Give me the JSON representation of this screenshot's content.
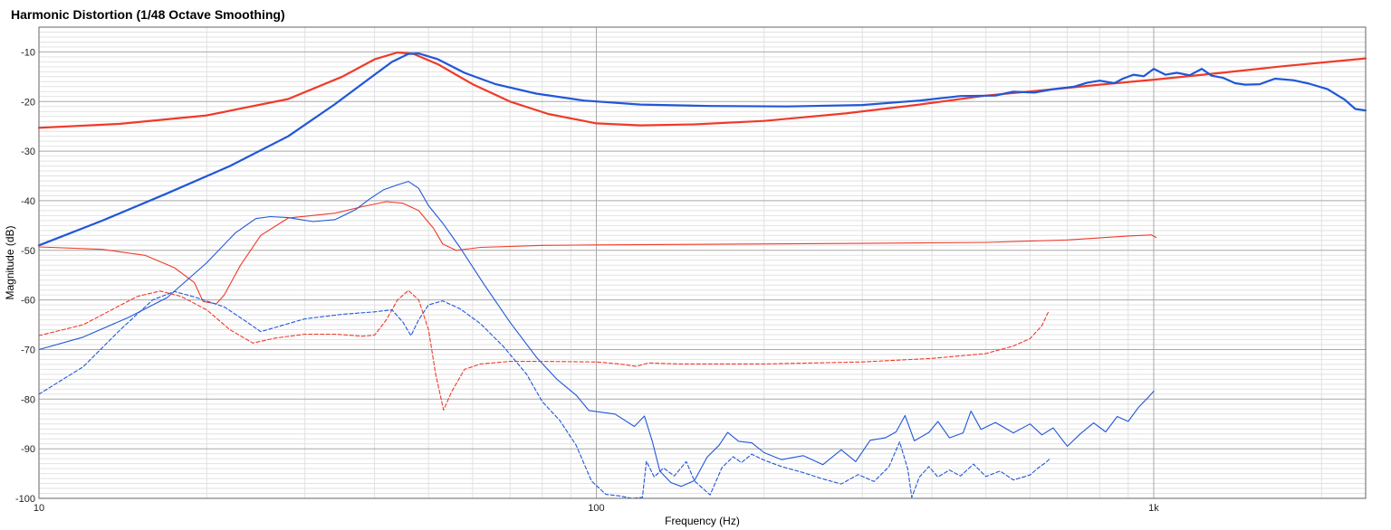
{
  "chart_data": {
    "type": "line",
    "title": "Harmonic Distortion (1/48 Octave Smoothing)",
    "xlabel": "Frequency (Hz)",
    "ylabel": "Magnitude (dB)",
    "x_scale": "log",
    "xlim": [
      10,
      2400
    ],
    "ylim": [
      -100,
      -5
    ],
    "x_ticks": [
      {
        "value": 10,
        "label": "10"
      },
      {
        "value": 100,
        "label": "100"
      },
      {
        "value": 1000,
        "label": "1k"
      }
    ],
    "y_ticks": [
      -10,
      -20,
      -30,
      -40,
      -50,
      -60,
      -70,
      -80,
      -90,
      -100
    ],
    "grid": true,
    "legend": "none",
    "colors": {
      "red": "#f03a2a",
      "blue": "#2057d8",
      "grid_major": "#a8a8a8",
      "grid_minor": "#e2e2e2"
    },
    "series": [
      {
        "color": "red",
        "style": "solid",
        "weight": "thick",
        "points": [
          [
            10,
            -25.3
          ],
          [
            14,
            -24.5
          ],
          [
            20,
            -22.8
          ],
          [
            28,
            -19.5
          ],
          [
            35,
            -15
          ],
          [
            40,
            -11.5
          ],
          [
            44,
            -10.1
          ],
          [
            47,
            -10.4
          ],
          [
            52,
            -12.5
          ],
          [
            60,
            -16.5
          ],
          [
            70,
            -20
          ],
          [
            82,
            -22.5
          ],
          [
            100,
            -24.4
          ],
          [
            120,
            -24.8
          ],
          [
            150,
            -24.6
          ],
          [
            200,
            -23.9
          ],
          [
            280,
            -22.4
          ],
          [
            380,
            -20.6
          ],
          [
            500,
            -18.8
          ],
          [
            650,
            -17.6
          ],
          [
            800,
            -16.6
          ],
          [
            1000,
            -15.6
          ],
          [
            1300,
            -14.3
          ],
          [
            1700,
            -12.9
          ],
          [
            2400,
            -11.3
          ]
        ]
      },
      {
        "color": "blue",
        "style": "solid",
        "weight": "thick",
        "points": [
          [
            10,
            -49
          ],
          [
            13,
            -44
          ],
          [
            17,
            -38.5
          ],
          [
            22,
            -33
          ],
          [
            28,
            -27
          ],
          [
            34,
            -20.5
          ],
          [
            39,
            -15.5
          ],
          [
            43,
            -12
          ],
          [
            46,
            -10.4
          ],
          [
            48,
            -10.3
          ],
          [
            52,
            -11.5
          ],
          [
            58,
            -14.2
          ],
          [
            66,
            -16.5
          ],
          [
            78,
            -18.4
          ],
          [
            95,
            -19.8
          ],
          [
            120,
            -20.6
          ],
          [
            160,
            -20.9
          ],
          [
            220,
            -21
          ],
          [
            300,
            -20.7
          ],
          [
            380,
            -19.8
          ],
          [
            450,
            -18.9
          ],
          [
            520,
            -18.8
          ],
          [
            560,
            -18
          ],
          [
            610,
            -18.2
          ],
          [
            660,
            -17.5
          ],
          [
            720,
            -17
          ],
          [
            760,
            -16.2
          ],
          [
            800,
            -15.8
          ],
          [
            850,
            -16.3
          ],
          [
            880,
            -15.4
          ],
          [
            920,
            -14.6
          ],
          [
            960,
            -14.9
          ],
          [
            1000,
            -13.4
          ],
          [
            1050,
            -14.6
          ],
          [
            1100,
            -14.2
          ],
          [
            1160,
            -14.7
          ],
          [
            1220,
            -13.4
          ],
          [
            1270,
            -14.8
          ],
          [
            1330,
            -15.2
          ],
          [
            1400,
            -16.3
          ],
          [
            1460,
            -16.6
          ],
          [
            1550,
            -16.5
          ],
          [
            1650,
            -15.4
          ],
          [
            1780,
            -15.7
          ],
          [
            1900,
            -16.4
          ],
          [
            2050,
            -17.5
          ],
          [
            2200,
            -19.6
          ],
          [
            2300,
            -21.5
          ],
          [
            2400,
            -21.8
          ]
        ]
      },
      {
        "color": "red",
        "style": "solid",
        "weight": "thin",
        "points": [
          [
            10,
            -49.3
          ],
          [
            13,
            -49.8
          ],
          [
            15.5,
            -51
          ],
          [
            17.5,
            -53.5
          ],
          [
            19,
            -56.5
          ],
          [
            19.7,
            -60.3
          ],
          [
            20.8,
            -60.8
          ],
          [
            21.5,
            -59
          ],
          [
            23,
            -53
          ],
          [
            25,
            -47
          ],
          [
            28,
            -43.5
          ],
          [
            34,
            -42.5
          ],
          [
            38,
            -41.2
          ],
          [
            42,
            -40.2
          ],
          [
            45,
            -40.5
          ],
          [
            48,
            -42
          ],
          [
            51,
            -45.5
          ],
          [
            53,
            -48.7
          ],
          [
            56,
            -50
          ],
          [
            62,
            -49.4
          ],
          [
            80,
            -49
          ],
          [
            100,
            -48.9
          ],
          [
            150,
            -48.8
          ],
          [
            300,
            -48.6
          ],
          [
            500,
            -48.4
          ],
          [
            700,
            -47.9
          ],
          [
            900,
            -47.1
          ],
          [
            990,
            -46.9
          ],
          [
            1010,
            -47.4
          ]
        ]
      },
      {
        "color": "blue",
        "style": "solid",
        "weight": "thin",
        "points": [
          [
            10,
            -70
          ],
          [
            12,
            -67.5
          ],
          [
            14.5,
            -63.5
          ],
          [
            17,
            -59.5
          ],
          [
            20,
            -52.5
          ],
          [
            22.5,
            -46.5
          ],
          [
            24.5,
            -43.6
          ],
          [
            26,
            -43.2
          ],
          [
            28,
            -43.4
          ],
          [
            31,
            -44.2
          ],
          [
            34,
            -43.8
          ],
          [
            37,
            -41.8
          ],
          [
            39,
            -39.8
          ],
          [
            41.5,
            -37.8
          ],
          [
            44,
            -36.8
          ],
          [
            46,
            -36.1
          ],
          [
            48,
            -37.5
          ],
          [
            50,
            -41
          ],
          [
            53,
            -44.5
          ],
          [
            57,
            -49.5
          ],
          [
            63,
            -57
          ],
          [
            70,
            -64.5
          ],
          [
            78,
            -71.5
          ],
          [
            85,
            -76
          ],
          [
            92,
            -79.2
          ],
          [
            97,
            -82.3
          ],
          [
            108,
            -83
          ],
          [
            117,
            -85.5
          ],
          [
            122,
            -83.4
          ],
          [
            126,
            -88.5
          ],
          [
            130,
            -94.5
          ],
          [
            136,
            -96.8
          ],
          [
            142,
            -97.6
          ],
          [
            150,
            -96.4
          ],
          [
            158,
            -91.7
          ],
          [
            166,
            -89.3
          ],
          [
            172,
            -86.7
          ],
          [
            180,
            -88.5
          ],
          [
            190,
            -88.8
          ],
          [
            200,
            -90.8
          ],
          [
            215,
            -92.2
          ],
          [
            235,
            -91.4
          ],
          [
            255,
            -93.2
          ],
          [
            275,
            -90.2
          ],
          [
            292,
            -92.6
          ],
          [
            310,
            -88.3
          ],
          [
            330,
            -87.8
          ],
          [
            345,
            -86.6
          ],
          [
            358,
            -83.3
          ],
          [
            372,
            -88.4
          ],
          [
            395,
            -86.7
          ],
          [
            410,
            -84.5
          ],
          [
            430,
            -87.8
          ],
          [
            455,
            -86.8
          ],
          [
            470,
            -82.4
          ],
          [
            490,
            -86.1
          ],
          [
            520,
            -84.7
          ],
          [
            560,
            -86.8
          ],
          [
            600,
            -85
          ],
          [
            630,
            -87.2
          ],
          [
            660,
            -85.8
          ],
          [
            700,
            -89.5
          ],
          [
            740,
            -86.9
          ],
          [
            780,
            -84.8
          ],
          [
            820,
            -86.6
          ],
          [
            860,
            -83.5
          ],
          [
            900,
            -84.5
          ],
          [
            940,
            -81.6
          ],
          [
            980,
            -79.5
          ],
          [
            1000,
            -78.4
          ]
        ]
      },
      {
        "color": "red",
        "style": "dashed",
        "weight": "thin",
        "points": [
          [
            10,
            -67.2
          ],
          [
            12,
            -65
          ],
          [
            13.5,
            -62
          ],
          [
            15,
            -59.3
          ],
          [
            16.5,
            -58.2
          ],
          [
            18,
            -59.3
          ],
          [
            20,
            -62
          ],
          [
            22,
            -66
          ],
          [
            24.2,
            -68.7
          ],
          [
            26.5,
            -67.7
          ],
          [
            30,
            -66.9
          ],
          [
            34,
            -66.9
          ],
          [
            38,
            -67.3
          ],
          [
            40,
            -67.1
          ],
          [
            42,
            -64
          ],
          [
            44,
            -60
          ],
          [
            46,
            -58.1
          ],
          [
            48,
            -60
          ],
          [
            50,
            -66
          ],
          [
            51.5,
            -75
          ],
          [
            53.2,
            -82.2
          ],
          [
            55,
            -78.5
          ],
          [
            58,
            -74
          ],
          [
            62,
            -72.9
          ],
          [
            70,
            -72.4
          ],
          [
            80,
            -72.4
          ],
          [
            100,
            -72.5
          ],
          [
            110,
            -72.9
          ],
          [
            118,
            -73.4
          ],
          [
            124,
            -72.7
          ],
          [
            140,
            -72.9
          ],
          [
            200,
            -72.9
          ],
          [
            300,
            -72.5
          ],
          [
            400,
            -71.8
          ],
          [
            500,
            -70.8
          ],
          [
            560,
            -69.3
          ],
          [
            600,
            -67.8
          ],
          [
            630,
            -65.2
          ],
          [
            645,
            -62.7
          ],
          [
            650,
            -62.3
          ]
        ]
      },
      {
        "color": "blue",
        "style": "dashed",
        "weight": "thin",
        "points": [
          [
            10,
            -79
          ],
          [
            12,
            -73.5
          ],
          [
            14,
            -66
          ],
          [
            16,
            -60
          ],
          [
            17.5,
            -58.3
          ],
          [
            19,
            -59.4
          ],
          [
            21.5,
            -61.4
          ],
          [
            23.5,
            -64.3
          ],
          [
            25,
            -66.4
          ],
          [
            27,
            -65.3
          ],
          [
            30,
            -63.8
          ],
          [
            35,
            -62.9
          ],
          [
            40,
            -62.4
          ],
          [
            43,
            -62
          ],
          [
            45,
            -64.5
          ],
          [
            46.5,
            -67.2
          ],
          [
            48,
            -64
          ],
          [
            50,
            -61
          ],
          [
            53,
            -60.2
          ],
          [
            57,
            -61.8
          ],
          [
            62,
            -64.8
          ],
          [
            68,
            -69.3
          ],
          [
            75,
            -75
          ],
          [
            80,
            -80.5
          ],
          [
            86,
            -84.3
          ],
          [
            92,
            -89.3
          ],
          [
            98,
            -96.5
          ],
          [
            104,
            -99.2
          ],
          [
            110,
            -99.5
          ],
          [
            116,
            -100
          ],
          [
            121,
            -99.8
          ],
          [
            123,
            -92.5
          ],
          [
            127,
            -95.7
          ],
          [
            132,
            -93.9
          ],
          [
            138,
            -95.5
          ],
          [
            145,
            -92.6
          ],
          [
            150,
            -96.5
          ],
          [
            160,
            -99.3
          ],
          [
            168,
            -93.8
          ],
          [
            176,
            -91.6
          ],
          [
            182,
            -92.8
          ],
          [
            190,
            -91.1
          ],
          [
            200,
            -92.3
          ],
          [
            215,
            -93.6
          ],
          [
            235,
            -94.8
          ],
          [
            255,
            -96.1
          ],
          [
            275,
            -97.1
          ],
          [
            295,
            -95.2
          ],
          [
            315,
            -96.6
          ],
          [
            335,
            -93.6
          ],
          [
            350,
            -88.6
          ],
          [
            362,
            -94.1
          ],
          [
            368,
            -99.8
          ],
          [
            380,
            -95.7
          ],
          [
            395,
            -93.6
          ],
          [
            410,
            -95.7
          ],
          [
            430,
            -94.3
          ],
          [
            450,
            -95.5
          ],
          [
            475,
            -93.1
          ],
          [
            500,
            -95.6
          ],
          [
            530,
            -94.5
          ],
          [
            560,
            -96.3
          ],
          [
            600,
            -95.3
          ],
          [
            620,
            -93.9
          ],
          [
            640,
            -92.8
          ],
          [
            650,
            -92.1
          ]
        ]
      }
    ]
  }
}
